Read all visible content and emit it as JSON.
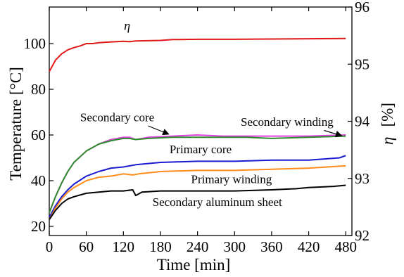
{
  "chart_data": {
    "type": "line",
    "xlabel": "Time [min]",
    "ylabel": "Temperature [°C]",
    "y2label_symbol": "η",
    "y2label_unit": "[%]",
    "xlim": [
      0,
      490
    ],
    "ylim": [
      16,
      116
    ],
    "y2lim": [
      92,
      96
    ],
    "xticks": [
      0,
      60,
      120,
      180,
      240,
      300,
      360,
      420,
      480
    ],
    "yticks": [
      20,
      40,
      60,
      80,
      100
    ],
    "y2ticks": [
      92,
      93,
      94,
      95,
      96
    ],
    "grid": false,
    "series": [
      {
        "name": "Secondary core",
        "axis": "left",
        "color": "#e040e0",
        "x": [
          0,
          10,
          20,
          30,
          40,
          60,
          80,
          100,
          120,
          130,
          140,
          160,
          200,
          240,
          280,
          320,
          360,
          420,
          480
        ],
        "y": [
          26,
          33,
          39,
          44,
          48,
          53,
          56,
          58,
          59,
          59,
          58,
          59,
          59.5,
          60,
          59.5,
          59.5,
          59.5,
          59.5,
          60
        ]
      },
      {
        "name": "Secondary winding",
        "axis": "left",
        "color": "#2e8b2e",
        "x": [
          0,
          10,
          20,
          30,
          40,
          60,
          80,
          100,
          120,
          130,
          140,
          160,
          200,
          240,
          280,
          320,
          360,
          420,
          480
        ],
        "y": [
          26,
          33,
          39,
          44,
          48,
          53,
          56,
          57.5,
          58.5,
          58.5,
          58,
          58.5,
          59,
          59,
          59,
          59,
          58.5,
          59,
          59.5
        ]
      },
      {
        "name": "Primary core",
        "axis": "left",
        "color": "#1a1ad0",
        "x": [
          0,
          10,
          20,
          30,
          40,
          60,
          80,
          100,
          120,
          140,
          180,
          240,
          300,
          360,
          420,
          470,
          480
        ],
        "y": [
          24,
          29,
          33,
          36,
          38.5,
          42,
          44,
          45.5,
          46,
          47,
          48,
          48.5,
          48.5,
          49,
          49,
          50,
          51
        ]
      },
      {
        "name": "Primary winding",
        "axis": "left",
        "color": "#ff8c1a",
        "x": [
          0,
          10,
          20,
          30,
          40,
          60,
          80,
          100,
          120,
          135,
          145,
          180,
          240,
          300,
          360,
          420,
          480
        ],
        "y": [
          23,
          28,
          32,
          35,
          37,
          40,
          41.5,
          42,
          43,
          42.5,
          43,
          44,
          44.5,
          44.5,
          45,
          45.5,
          46.5
        ]
      },
      {
        "name": "Secondary aluminum sheet",
        "axis": "left",
        "color": "#000000",
        "x": [
          0,
          10,
          20,
          30,
          40,
          60,
          80,
          100,
          120,
          135,
          140,
          150,
          180,
          240,
          300,
          360,
          400,
          420,
          460,
          480
        ],
        "y": [
          23,
          27,
          30,
          32,
          33,
          34.5,
          35,
          35.5,
          35.5,
          36,
          33.5,
          35,
          35.5,
          35.5,
          35.5,
          36,
          36.5,
          37,
          37.5,
          38
        ]
      },
      {
        "name": "η",
        "axis": "right",
        "color": "#e01818",
        "x": [
          0,
          10,
          20,
          30,
          40,
          50,
          60,
          70,
          80,
          100,
          120,
          130,
          140,
          160,
          180,
          200,
          240,
          300,
          360,
          420,
          480
        ],
        "y": [
          94.87,
          95.07,
          95.18,
          95.25,
          95.29,
          95.32,
          95.36,
          95.36,
          95.375,
          95.39,
          95.4,
          95.395,
          95.405,
          95.41,
          95.415,
          95.43,
          95.435,
          95.435,
          95.44,
          95.445,
          95.45
        ]
      }
    ],
    "annotations": [
      {
        "text": "η",
        "x": 126,
        "y": 106
      },
      {
        "text": "Secondary core",
        "x": 110,
        "y": 66
      },
      {
        "text": "Secondary winding",
        "x": 385,
        "y": 64
      },
      {
        "text": "Primary core",
        "x": 245,
        "y": 52
      },
      {
        "text": "Primary winding",
        "x": 295,
        "y": 39
      },
      {
        "text": "Secondary aluminum sheet",
        "x": 272,
        "y": 29
      }
    ]
  }
}
